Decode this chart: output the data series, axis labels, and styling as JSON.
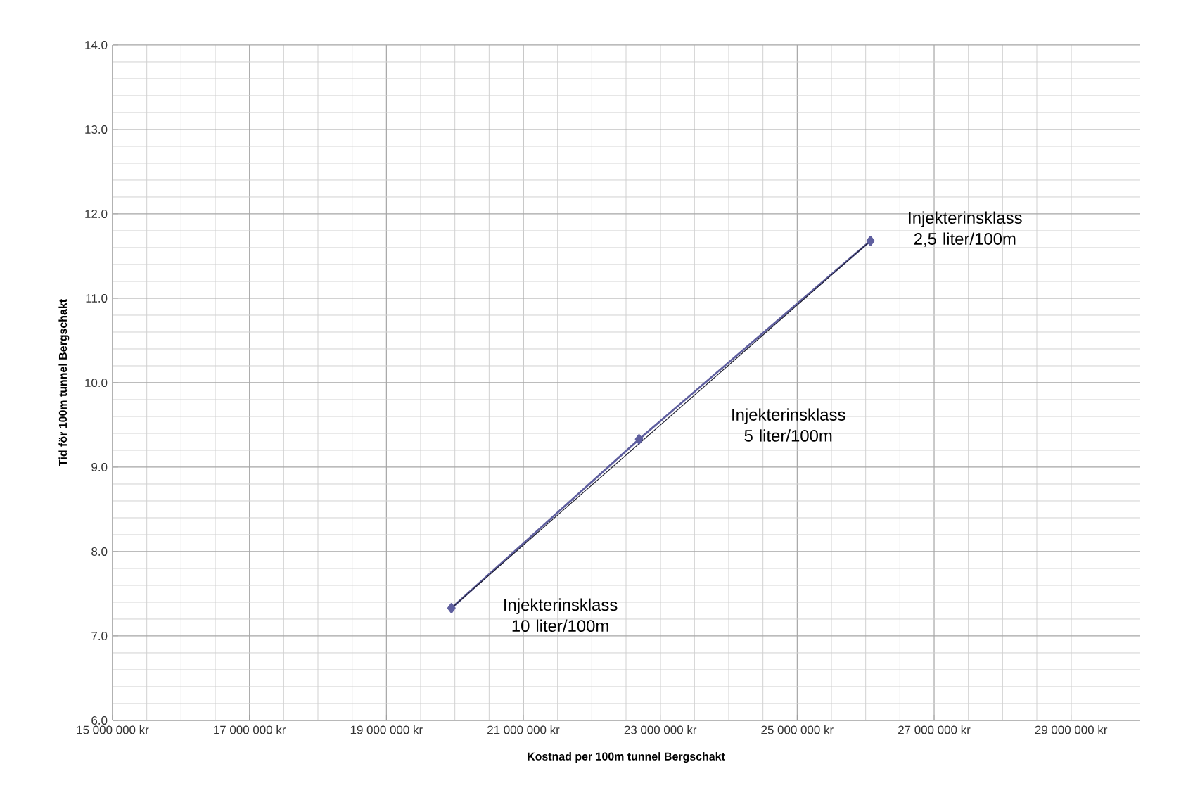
{
  "chart_data": {
    "type": "line",
    "xlabel": "Kostnad per 100m tunnel Bergschakt",
    "ylabel": "Tid för 100m tunnel Bergschakt",
    "series": [
      {
        "color": "#5f5f9f",
        "marker": "diamond",
        "x": [
          19950000,
          22690000,
          26070000
        ],
        "values": [
          7.33,
          9.33,
          11.68
        ]
      },
      {
        "color": "#1a1a2a",
        "marker": "none",
        "x": [
          19950000,
          26070000
        ],
        "values": [
          7.33,
          11.68
        ]
      }
    ],
    "xlim": [
      15000000,
      30000000
    ],
    "xticks": [
      {
        "value": 15000000,
        "label": "15 000 000 kr"
      },
      {
        "value": 17000000,
        "label": "17 000 000 kr"
      },
      {
        "value": 19000000,
        "label": "19 000 000 kr"
      },
      {
        "value": 21000000,
        "label": "21 000 000 kr"
      },
      {
        "value": 23000000,
        "label": "23 000 000 kr"
      },
      {
        "value": 25000000,
        "label": "25 000 000 kr"
      },
      {
        "value": 27000000,
        "label": "27 000 000 kr"
      },
      {
        "value": 29000000,
        "label": "29 000 000 kr"
      }
    ],
    "ylim": [
      6,
      14
    ],
    "yticks": [
      {
        "value": 6,
        "label": "6.0"
      },
      {
        "value": 7,
        "label": "7.0"
      },
      {
        "value": 8,
        "label": "8.0"
      },
      {
        "value": 9,
        "label": "9.0"
      },
      {
        "value": 10,
        "label": "10.0"
      },
      {
        "value": 11,
        "label": "11.0"
      },
      {
        "value": 12,
        "label": "12.0"
      },
      {
        "value": 13,
        "label": "13.0"
      },
      {
        "value": 14,
        "label": "14.0"
      }
    ],
    "grid": true,
    "annotations": [
      "Injekterinsklass 10 liter/100m",
      "Injekterinsklass 5 liter/100m",
      "Injekterinsklass 2,5 liter/100m"
    ]
  }
}
